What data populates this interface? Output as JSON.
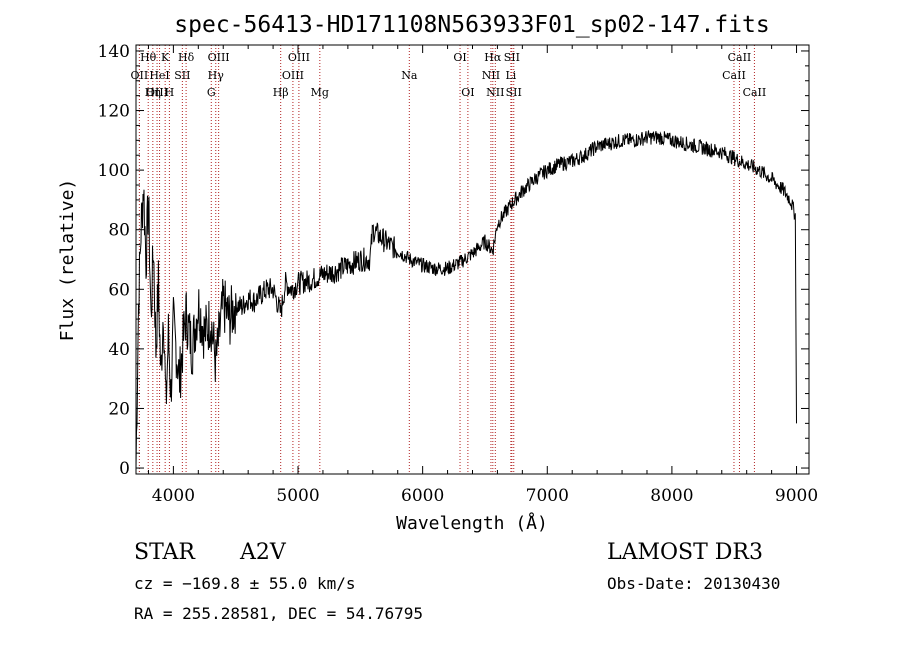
{
  "chart_data": {
    "type": "line",
    "title": "spec-56413-HD171108N563933F01_sp02-147.fits",
    "xlabel": "Wavelength (Å)",
    "ylabel": "Flux (relative)",
    "xlim": [
      3700,
      9100
    ],
    "ylim": [
      -2,
      142
    ],
    "x_ticks": [
      4000,
      5000,
      6000,
      7000,
      8000,
      9000
    ],
    "x_tick_labels": [
      "4000",
      "5000",
      "6000",
      "7000",
      "8000",
      "9000"
    ],
    "y_ticks": [
      0,
      20,
      40,
      60,
      80,
      100,
      120,
      140
    ],
    "y_tick_labels": [
      "0",
      "20",
      "40",
      "60",
      "80",
      "100",
      "120",
      "140"
    ],
    "series": [
      {
        "name": "spectrum",
        "color": "#000000",
        "x": [
          3700,
          3720,
          3740,
          3760,
          3780,
          3800,
          3820,
          3840,
          3860,
          3880,
          3900,
          3920,
          3940,
          3960,
          3980,
          4000,
          4050,
          4100,
          4150,
          4200,
          4250,
          4300,
          4340,
          4400,
          4450,
          4500,
          4550,
          4600,
          4650,
          4700,
          4750,
          4800,
          4861,
          4900,
          4950,
          5000,
          5100,
          5200,
          5300,
          5400,
          5500,
          5577,
          5600,
          5700,
          5800,
          5900,
          6000,
          6100,
          6200,
          6300,
          6400,
          6500,
          6563,
          6600,
          6700,
          6800,
          6900,
          7000,
          7100,
          7200,
          7300,
          7400,
          7500,
          7600,
          7700,
          7800,
          7900,
          8000,
          8100,
          8200,
          8300,
          8400,
          8500,
          8600,
          8700,
          8800,
          8900,
          8950,
          8990,
          9000
        ],
        "y": [
          0,
          55,
          80,
          95,
          70,
          90,
          50,
          75,
          40,
          62,
          30,
          55,
          20,
          45,
          25,
          48,
          30,
          52,
          40,
          55,
          45,
          50,
          35,
          55,
          50,
          55,
          54,
          57,
          56,
          58,
          60,
          60,
          52,
          62,
          60,
          62,
          63,
          65,
          66,
          68,
          70,
          70,
          80,
          76,
          73,
          70,
          68,
          67,
          67,
          69,
          72,
          76,
          73,
          82,
          88,
          93,
          97,
          100,
          102,
          103,
          105,
          108,
          109,
          110,
          110,
          111,
          111,
          110,
          109,
          108,
          107,
          106,
          104,
          102,
          100,
          97,
          93,
          90,
          85,
          15
        ]
      }
    ],
    "annotations": [
      {
        "label": "Hθ",
        "x": 3798,
        "row": 1
      },
      {
        "label": "OII",
        "x": 3727,
        "row": 2
      },
      {
        "label": "OIII",
        "x": 3869,
        "row": 3
      },
      {
        "label": "K",
        "x": 3934,
        "row": 1
      },
      {
        "label": "HeI",
        "x": 3889,
        "row": 2
      },
      {
        "label": "Hη",
        "x": 3835,
        "row": 3
      },
      {
        "label": "Hδ",
        "x": 4102,
        "row": 1
      },
      {
        "label": "SII",
        "x": 4072,
        "row": 2
      },
      {
        "label": "H",
        "x": 3968,
        "row": 3
      },
      {
        "label": "OIII",
        "x": 4363,
        "row": 1
      },
      {
        "label": "Hγ",
        "x": 4340,
        "row": 2
      },
      {
        "label": "G",
        "x": 4304,
        "row": 3
      },
      {
        "label": "OIII",
        "x": 5007,
        "row": 1
      },
      {
        "label": "OIII",
        "x": 4959,
        "row": 2
      },
      {
        "label": "Hβ",
        "x": 4861,
        "row": 3
      },
      {
        "label": "Mg",
        "x": 5175,
        "row": 3
      },
      {
        "label": "Na",
        "x": 5893,
        "row": 2
      },
      {
        "label": "OI",
        "x": 6300,
        "row": 1
      },
      {
        "label": "OI",
        "x": 6363,
        "row": 3
      },
      {
        "label": "Hα",
        "x": 6563,
        "row": 1
      },
      {
        "label": "SII",
        "x": 6716,
        "row": 1
      },
      {
        "label": "NII",
        "x": 6548,
        "row": 2
      },
      {
        "label": "Li",
        "x": 6708,
        "row": 2
      },
      {
        "label": "NII",
        "x": 6583,
        "row": 3
      },
      {
        "label": "SII",
        "x": 6731,
        "row": 3
      },
      {
        "label": "CaII",
        "x": 8542,
        "row": 1
      },
      {
        "label": "CaII",
        "x": 8498,
        "row": 2
      },
      {
        "label": "CaII",
        "x": 8662,
        "row": 3
      }
    ]
  },
  "info": {
    "type_label": "STAR",
    "subclass": "A2V",
    "survey": "LAMOST DR3",
    "cz": "cz = −169.8 ± 55.0 km/s",
    "obs_date": "Obs-Date: 20130430",
    "coords": "RA = 255.28581, DEC =  54.76795"
  },
  "colors": {
    "line_marker": "#b22222",
    "spectrum": "#000000",
    "axis": "#000000"
  }
}
